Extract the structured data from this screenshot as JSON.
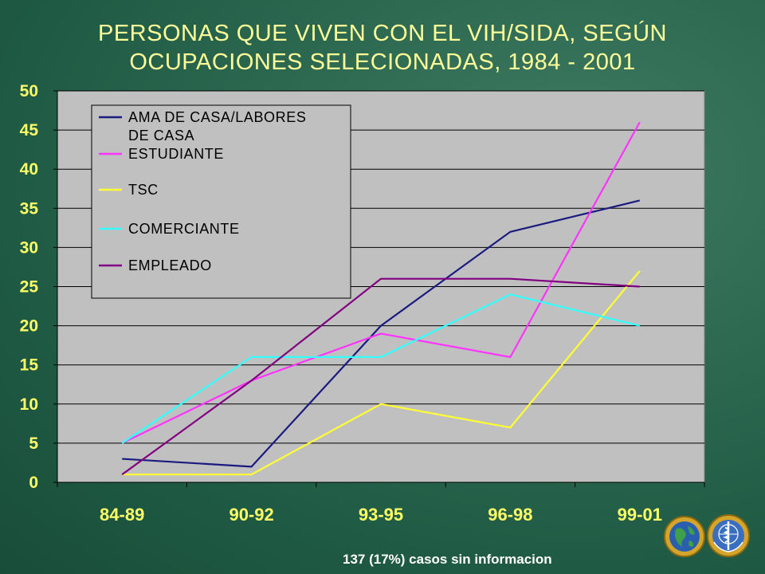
{
  "slide": {
    "title_line1": "PERSONAS QUE VIVEN CON EL VIH/SIDA, SEGÚN",
    "title_line2": "OCUPACIONES SELECIONADAS, 1984 - 2001",
    "footnote": "137 (17%) casos sin informacion"
  },
  "chart_data": {
    "type": "line",
    "categories": [
      "84-89",
      "90-92",
      "93-95",
      "96-98",
      "99-01"
    ],
    "ylim": [
      0,
      50
    ],
    "yticks": [
      "0",
      "5",
      "10",
      "15",
      "20",
      "25",
      "30",
      "35",
      "40",
      "45",
      "50"
    ],
    "grid": true,
    "legend_position": "top-left",
    "series": [
      {
        "name": "AMA DE CASA/LABORES DE CASA",
        "legend_line1": "AMA DE CASA/LABORES",
        "legend_line2": "DE CASA",
        "color": "#1a1a80",
        "values": [
          3,
          2,
          20,
          32,
          36
        ]
      },
      {
        "name": "ESTUDIANTE",
        "color": "#ff33ff",
        "values": [
          5,
          13,
          19,
          16,
          46
        ]
      },
      {
        "name": "TSC",
        "color": "#ffff33",
        "values": [
          1,
          1,
          10,
          7,
          27
        ]
      },
      {
        "name": "COMERCIANTE",
        "color": "#33ffff",
        "values": [
          5,
          16,
          16,
          24,
          20
        ]
      },
      {
        "name": "EMPLEADO",
        "color": "#800080",
        "values": [
          1,
          13,
          26,
          26,
          25
        ]
      }
    ]
  }
}
